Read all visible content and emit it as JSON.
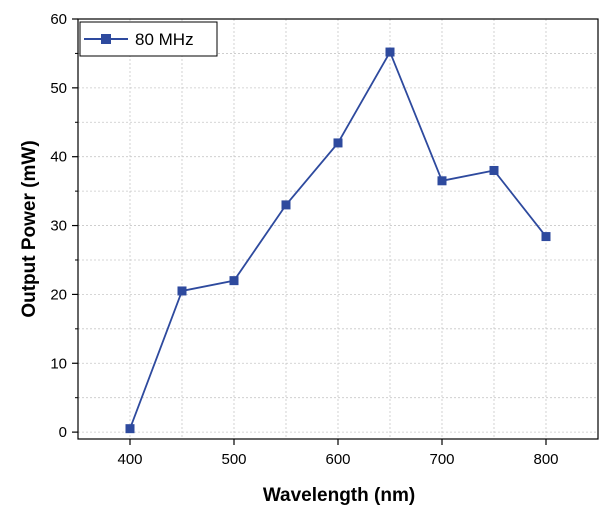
{
  "chart_data": {
    "type": "line",
    "xlabel": "Wavelength (nm)",
    "ylabel": "Output Power (mW)",
    "xlim": [
      350,
      850
    ],
    "ylim": [
      -1,
      60
    ],
    "xticks": [
      400,
      500,
      600,
      700,
      800
    ],
    "yticks": [
      0,
      10,
      20,
      30,
      40,
      50,
      60
    ],
    "grid": true,
    "legend_position": "top-left",
    "series": [
      {
        "name": "80 MHz",
        "color": "#2e4a9e",
        "marker": "square",
        "x": [
          400,
          450,
          500,
          550,
          600,
          650,
          700,
          750,
          800
        ],
        "y": [
          0.5,
          20.5,
          22,
          33,
          42,
          55.2,
          36.5,
          38,
          28.4
        ]
      }
    ]
  }
}
